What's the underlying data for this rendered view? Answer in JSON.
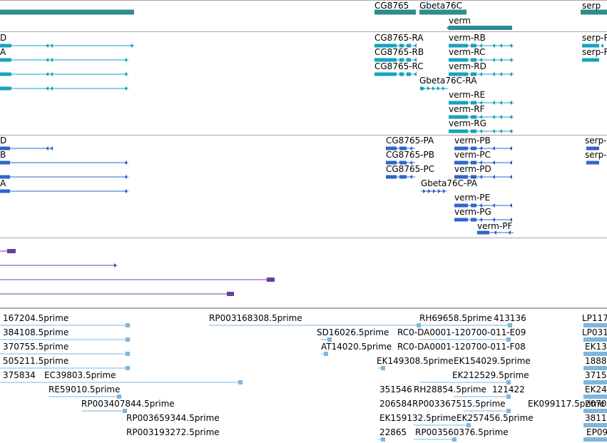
{
  "colors": {
    "gene": "#2e8c8c",
    "transcript": "#17a2c0",
    "protein": "#2f67c9",
    "purple": "#6a3fa0",
    "est": "#7fb6dd",
    "separator": "#a8a8a8"
  },
  "tracks": {
    "genes": {
      "labels": [
        "CG8765",
        "Gbeta76C",
        "verm",
        "serp"
      ]
    },
    "transcripts": {
      "labels": [
        "D",
        "A",
        "",
        "",
        "CG8765-RA",
        "CG8765-RB",
        "CG8765-RC",
        "Gbeta76C-RA",
        "verm-RB",
        "verm-RC",
        "verm-RD",
        "verm-RE",
        "verm-RF",
        "verm-RG",
        "serp-R",
        "serp-R"
      ]
    },
    "proteins": {
      "labels": [
        "D",
        "B",
        "",
        "A",
        "CG8765-PA",
        "CG8765-PB",
        "CG8765-PC",
        "Gbeta76C-PA",
        "verm-PB",
        "verm-PC",
        "verm-PD",
        "verm-PE",
        "verm-PG",
        "verm-PF",
        "serp-",
        "serp-"
      ]
    },
    "ests": {
      "labels": [
        "167204.5prime",
        "384108.5prime",
        "370755.5prime",
        "505211.5prime",
        "375834",
        "EC39803.5prime",
        "RE59010.5prime",
        "RP003407844.5prime",
        "RP003659344.5prime",
        "RP003193272.5prime",
        "RP003168308.5prime",
        "SD16026.5prime",
        "AT14020.5prime",
        "RH69658.5prime",
        "413136",
        "RC0-DA0001-120700-011-E09",
        "RC0-DA0001-120700-011-F08",
        "EK149308.5prime",
        "EK154029.5prime",
        "EK212529.5prime",
        "351546",
        "RH28854.5prime",
        "121422",
        "206584",
        "RP003367515.5prime",
        "EK099117.5prime",
        "EK159132.5prime",
        "EK257456.5prime",
        "22865",
        "RP003560376.5prime",
        "LP117",
        "LP031",
        "EK13",
        "1888",
        "3715",
        "EK24",
        "2070",
        "3811",
        "EP09"
      ]
    }
  }
}
